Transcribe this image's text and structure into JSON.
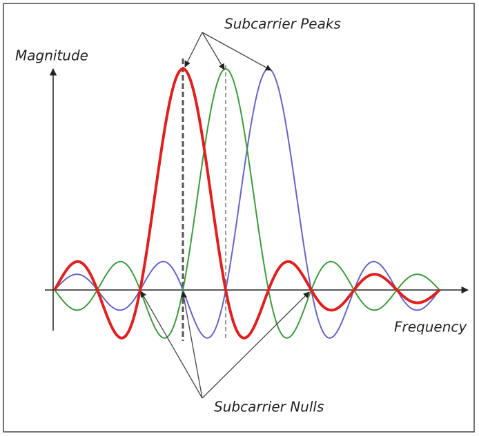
{
  "labels": {
    "peaks": "Subcarrier Peaks",
    "magnitude": "Magnitude",
    "frequency": "Frequency",
    "nulls": "Subcarrier Nulls"
  }
}
